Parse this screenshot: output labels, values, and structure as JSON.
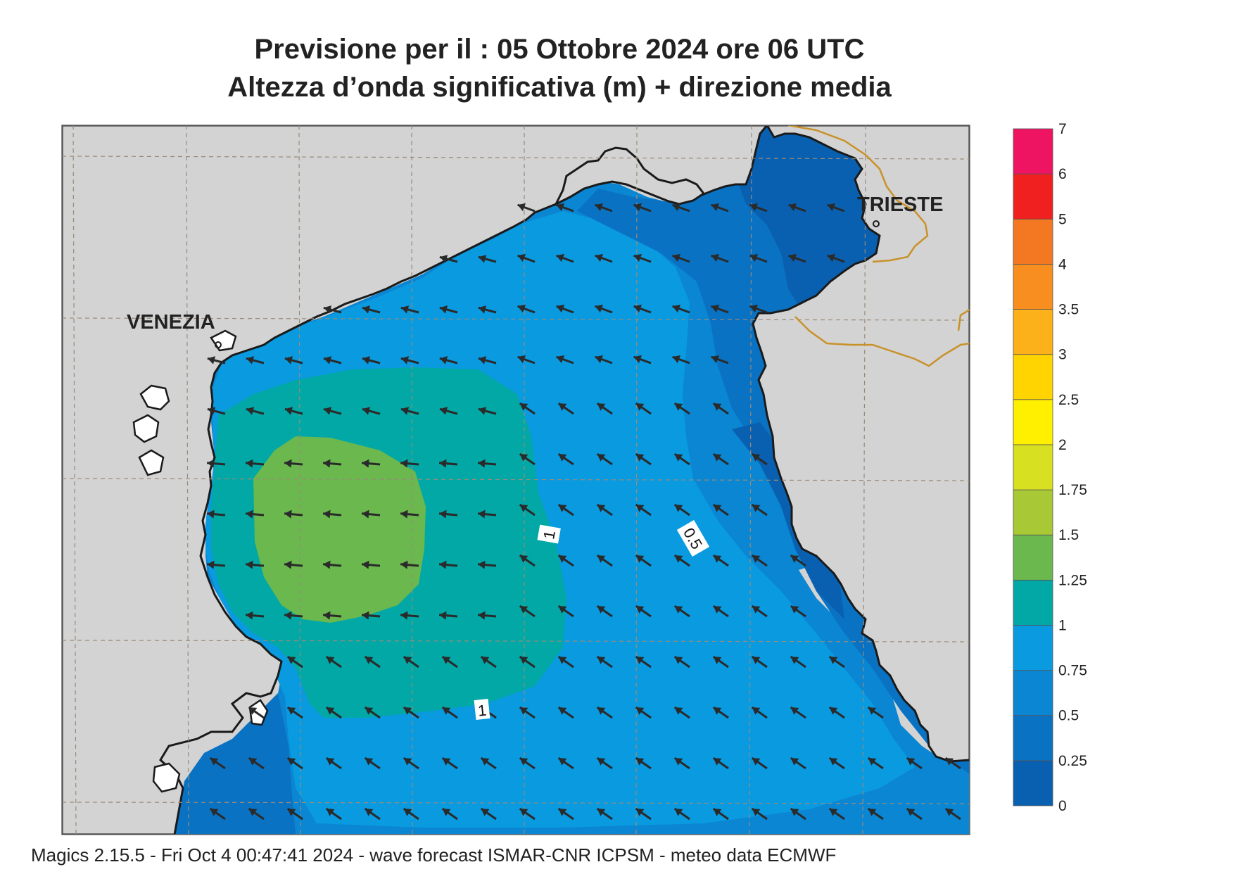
{
  "header": {
    "title": "Previsione per il  :  05  Ottobre  2024   ore 06 UTC",
    "subtitle": "Altezza d’onda significativa (m) + direzione media"
  },
  "footer": {
    "text": "Magics 2.15.5 - Fri Oct  4 00:47:41 2024 - wave forecast  ISMAR-CNR  ICPSM - meteo data    ECMWF"
  },
  "map": {
    "cities": [
      {
        "name": "VENEZIA"
      },
      {
        "name": "TRIESTE"
      }
    ],
    "contour_labels": [
      "1",
      "0.5",
      "1"
    ],
    "colors": {
      "land": "#d3d3d3",
      "coast": "#1a1a1a",
      "border": "#c8922a",
      "grid": "#9a8a78",
      "arrow": "#2a2a2a"
    }
  },
  "legend": {
    "unit": "m",
    "ticks": [
      "0",
      "0.25",
      "0.5",
      "0.75",
      "1",
      "1.25",
      "1.5",
      "1.75",
      "2",
      "2.5",
      "3",
      "3.5",
      "4",
      "5",
      "6",
      "7"
    ],
    "colors": [
      "#0a60b0",
      "#0a72c2",
      "#0a86d2",
      "#0a9ae0",
      "#02a8a6",
      "#6ab84e",
      "#a8c836",
      "#d8e022",
      "#fff000",
      "#ffd400",
      "#fcb019",
      "#f88e20",
      "#f47822",
      "#f02020",
      "#ee1462"
    ]
  }
}
